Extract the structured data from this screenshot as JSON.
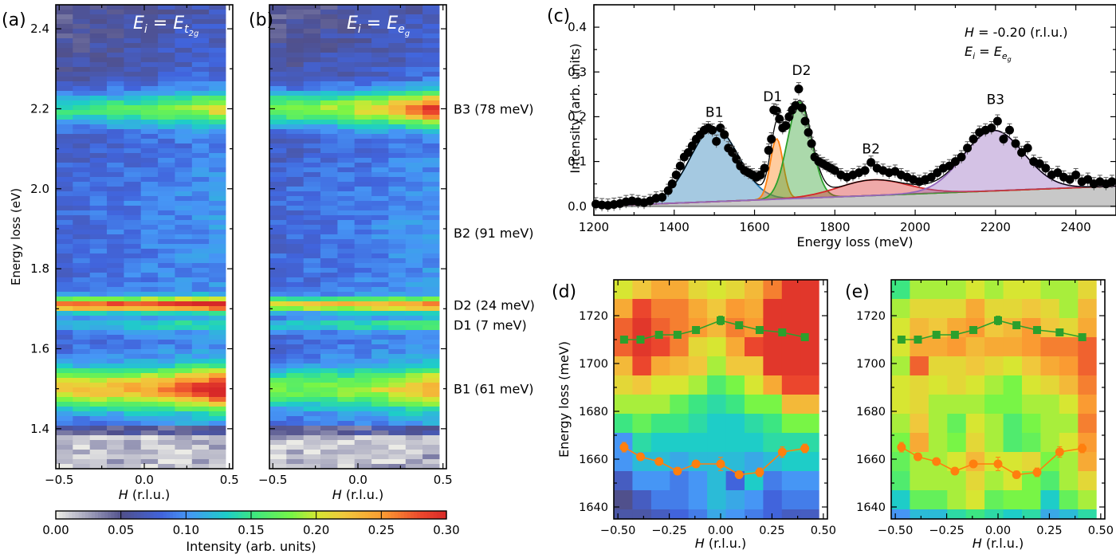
{
  "chart_data": [
    {
      "id": "a",
      "type": "heatmap",
      "panel_label": "(a)",
      "annotation": "E_i = E_t2g",
      "xlabel": "H (r.l.u.)",
      "ylabel": "Energy loss (eV)",
      "xlim": [
        -0.52,
        0.52
      ],
      "ylim": [
        1.3,
        2.46
      ],
      "xticks": [
        -0.5,
        0.0,
        0.5
      ],
      "xtick_labels": [
        "−0.5",
        "0.0",
        "0.5"
      ],
      "yticks": [
        1.4,
        1.6,
        1.8,
        2.0,
        2.2,
        2.4
      ],
      "ytick_labels": [
        "1.4",
        "1.6",
        "1.8",
        "2.0",
        "2.2",
        "2.4"
      ],
      "H_columns": [
        -0.47,
        -0.37,
        -0.27,
        -0.17,
        -0.07,
        0.03,
        0.13,
        0.23,
        0.33,
        0.43
      ],
      "features": [
        {
          "name": "B1",
          "energy_eV": 1.5,
          "peak_intensity": 0.22,
          "right_edge_intensity": 0.29
        },
        {
          "name": "D1",
          "energy_eV": 1.66,
          "peak_intensity": 0.12,
          "right_edge_intensity": 0.13
        },
        {
          "name": "D2",
          "energy_eV": 1.71,
          "peak_intensity": 0.27,
          "right_edge_intensity": 0.3
        },
        {
          "name": "B3",
          "energy_eV": 2.2,
          "peak_intensity": 0.16,
          "right_edge_intensity": 0.2
        }
      ],
      "background_intensity": 0.08,
      "elastic_edge_eV": 1.38
    },
    {
      "id": "b",
      "type": "heatmap",
      "panel_label": "(b)",
      "annotation": "E_i = E_eg",
      "xlabel": "H (r.l.u.)",
      "xlim": [
        -0.52,
        0.52
      ],
      "ylim": [
        1.3,
        2.46
      ],
      "xticks": [
        -0.5,
        0.0,
        0.5
      ],
      "xtick_labels": [
        "−0.5",
        "0.0",
        "0.5"
      ],
      "H_columns": [
        -0.47,
        -0.37,
        -0.27,
        -0.17,
        -0.07,
        0.03,
        0.13,
        0.23,
        0.33,
        0.43
      ],
      "features": [
        {
          "name": "B1",
          "energy_eV": 1.5,
          "peak_intensity": 0.17,
          "right_edge_intensity": 0.22
        },
        {
          "name": "D1",
          "energy_eV": 1.66,
          "peak_intensity": 0.13,
          "right_edge_intensity": 0.14
        },
        {
          "name": "D2",
          "energy_eV": 1.71,
          "peak_intensity": 0.22,
          "right_edge_intensity": 0.24
        },
        {
          "name": "B3",
          "energy_eV": 2.2,
          "peak_intensity": 0.19,
          "right_edge_intensity": 0.28
        }
      ],
      "background_intensity": 0.08,
      "elastic_edge_eV": 1.38,
      "side_labels": [
        {
          "text": "B3 (78 meV)",
          "energy_eV": 2.2,
          "color": "#9467bd"
        },
        {
          "text": "B2 (91 meV)",
          "energy_eV": 1.89,
          "color": "#d62728"
        },
        {
          "text": "D2 (24 meV)",
          "energy_eV": 1.71,
          "color": "#2ca02c"
        },
        {
          "text": "D1 (7 meV)",
          "energy_eV": 1.66,
          "color": "#ff7f0e"
        },
        {
          "text": "B1 (61 meV)",
          "energy_eV": 1.5,
          "color": "#1f77b4"
        }
      ]
    },
    {
      "id": "colorbar",
      "type": "colorbar",
      "label": "Intensity (arb. units)",
      "range": [
        0.0,
        0.3
      ],
      "ticks": [
        0.0,
        0.05,
        0.1,
        0.15,
        0.2,
        0.25,
        0.3
      ],
      "tick_labels": [
        "0.00",
        "0.05",
        "0.10",
        "0.15",
        "0.20",
        "0.25",
        "0.30"
      ]
    },
    {
      "id": "c",
      "type": "line",
      "panel_label": "(c)",
      "annotation_lines": [
        "H = -0.20 (r.l.u.)",
        "E_i = E_eg"
      ],
      "xlabel": "Energy loss (meV)",
      "ylabel": "Intensity (arb. units)",
      "xlim": [
        1200,
        2500
      ],
      "ylim": [
        -0.02,
        0.45
      ],
      "xticks": [
        1200,
        1400,
        1600,
        1800,
        2000,
        2200,
        2400
      ],
      "xtick_labels": [
        "1200",
        "1400",
        "1600",
        "1800",
        "2000",
        "2200",
        "2400"
      ],
      "yticks": [
        0.0,
        0.1,
        0.2,
        0.3,
        0.4
      ],
      "ytick_labels": [
        "0.0",
        "0.1",
        "0.2",
        "0.3",
        "0.4"
      ],
      "background_line": {
        "x": [
          1200,
          2500
        ],
        "y": [
          0.0,
          0.045
        ]
      },
      "components": [
        {
          "name": "B1",
          "center": 1500,
          "height": 0.165,
          "sigma": 60,
          "color": "#1f77b4"
        },
        {
          "name": "D1",
          "center": 1655,
          "height": 0.135,
          "sigma": 16,
          "color": "#ff7f0e"
        },
        {
          "name": "D2",
          "center": 1712,
          "height": 0.215,
          "sigma": 30,
          "color": "#2ca02c"
        },
        {
          "name": "B2",
          "center": 1895,
          "height": 0.035,
          "sigma": 85,
          "color": "#d62728"
        },
        {
          "name": "B3",
          "center": 2195,
          "height": 0.135,
          "sigma": 75,
          "color": "#9467bd"
        }
      ],
      "data_points": {
        "x": [
          1205,
          1220,
          1235,
          1250,
          1265,
          1280,
          1295,
          1310,
          1325,
          1340,
          1355,
          1370,
          1385,
          1395,
          1405,
          1415,
          1425,
          1435,
          1445,
          1455,
          1465,
          1475,
          1485,
          1495,
          1505,
          1515,
          1525,
          1535,
          1545,
          1555,
          1565,
          1575,
          1585,
          1595,
          1605,
          1615,
          1625,
          1635,
          1642,
          1648,
          1655,
          1662,
          1670,
          1678,
          1686,
          1694,
          1702,
          1710,
          1718,
          1726,
          1734,
          1742,
          1750,
          1760,
          1770,
          1780,
          1790,
          1800,
          1815,
          1830,
          1845,
          1860,
          1875,
          1890,
          1905,
          1920,
          1935,
          1950,
          1965,
          1980,
          1995,
          2010,
          2025,
          2040,
          2055,
          2070,
          2085,
          2100,
          2115,
          2130,
          2145,
          2160,
          2175,
          2190,
          2205,
          2220,
          2235,
          2250,
          2265,
          2280,
          2295,
          2310,
          2325,
          2340,
          2355,
          2370,
          2385,
          2400,
          2415,
          2430,
          2445,
          2460,
          2475,
          2490
        ],
        "y": [
          0.005,
          0.003,
          0.002,
          0.004,
          0.006,
          0.01,
          0.012,
          0.01,
          0.008,
          0.012,
          0.018,
          0.02,
          0.035,
          0.05,
          0.07,
          0.09,
          0.11,
          0.12,
          0.135,
          0.15,
          0.16,
          0.17,
          0.175,
          0.17,
          0.145,
          0.175,
          0.16,
          0.13,
          0.12,
          0.105,
          0.09,
          0.08,
          0.075,
          0.07,
          0.065,
          0.07,
          0.085,
          0.125,
          0.15,
          0.215,
          0.213,
          0.195,
          0.175,
          0.18,
          0.2,
          0.215,
          0.225,
          0.262,
          0.22,
          0.19,
          0.165,
          0.14,
          0.11,
          0.1,
          0.095,
          0.09,
          0.085,
          0.08,
          0.07,
          0.065,
          0.07,
          0.075,
          0.08,
          0.098,
          0.085,
          0.08,
          0.075,
          0.078,
          0.07,
          0.065,
          0.06,
          0.055,
          0.06,
          0.065,
          0.075,
          0.085,
          0.09,
          0.1,
          0.11,
          0.13,
          0.15,
          0.165,
          0.17,
          0.175,
          0.19,
          0.15,
          0.17,
          0.14,
          0.12,
          0.13,
          0.1,
          0.095,
          0.085,
          0.07,
          0.075,
          0.065,
          0.06,
          0.07,
          0.055,
          0.06,
          0.05,
          0.055,
          0.05,
          0.055
        ]
      },
      "peak_labels": [
        {
          "text": "B1",
          "x": 1500,
          "y": 0.2,
          "color": "#1f77b4"
        },
        {
          "text": "D1",
          "x": 1645,
          "y": 0.235,
          "color": "#ff7f0e"
        },
        {
          "text": "D2",
          "x": 1717,
          "y": 0.293,
          "color": "#2ca02c"
        },
        {
          "text": "B2",
          "x": 1890,
          "y": 0.118,
          "color": "#d62728"
        },
        {
          "text": "B3",
          "x": 2200,
          "y": 0.228,
          "color": "#9467bd"
        }
      ]
    },
    {
      "id": "d",
      "type": "heatmap",
      "panel_label": "(d)",
      "xlabel": "H (r.l.u.)",
      "ylabel": "Energy loss (meV)",
      "xlim": [
        -0.52,
        0.52
      ],
      "ylim": [
        1635,
        1735
      ],
      "xticks": [
        -0.5,
        -0.25,
        0.0,
        0.25,
        0.5
      ],
      "xtick_labels": [
        "−0.50",
        "−0.25",
        "0.00",
        "0.25",
        "0.50"
      ],
      "yticks": [
        1640,
        1660,
        1680,
        1700,
        1720
      ],
      "ytick_labels": [
        "1640",
        "1660",
        "1680",
        "1700",
        "1720"
      ],
      "H_columns": [
        -0.47,
        -0.39,
        -0.3,
        -0.21,
        -0.12,
        -0.03,
        0.06,
        0.15,
        0.24,
        0.33,
        0.42
      ],
      "row_energies": [
        1731,
        1723,
        1715,
        1707,
        1699,
        1691,
        1683,
        1675,
        1667,
        1659,
        1651,
        1643,
        1637
      ],
      "grid_intensity": [
        [
          0.2,
          0.22,
          0.24,
          0.24,
          0.21,
          0.2,
          0.21,
          0.23,
          0.26,
          0.29,
          0.29
        ],
        [
          0.24,
          0.28,
          0.26,
          0.26,
          0.24,
          0.22,
          0.25,
          0.24,
          0.29,
          0.29,
          0.29
        ],
        [
          0.27,
          0.29,
          0.27,
          0.26,
          0.25,
          0.23,
          0.26,
          0.25,
          0.29,
          0.29,
          0.29
        ],
        [
          0.27,
          0.29,
          0.28,
          0.26,
          0.21,
          0.2,
          0.24,
          0.28,
          0.29,
          0.29,
          0.29
        ],
        [
          0.23,
          0.28,
          0.24,
          0.23,
          0.22,
          0.19,
          0.22,
          0.22,
          0.29,
          0.29,
          0.29
        ],
        [
          0.21,
          0.22,
          0.2,
          0.2,
          0.19,
          0.16,
          0.18,
          0.2,
          0.24,
          0.28,
          0.28
        ],
        [
          0.19,
          0.19,
          0.19,
          0.17,
          0.15,
          0.14,
          0.15,
          0.18,
          0.18,
          0.23,
          0.23
        ],
        [
          0.15,
          0.17,
          0.15,
          0.15,
          0.14,
          0.13,
          0.13,
          0.14,
          0.15,
          0.18,
          0.18
        ],
        [
          0.1,
          0.14,
          0.13,
          0.13,
          0.13,
          0.13,
          0.13,
          0.13,
          0.14,
          0.14,
          0.14
        ],
        [
          0.1,
          0.12,
          0.12,
          0.11,
          0.12,
          0.12,
          0.12,
          0.11,
          0.12,
          0.13,
          0.13
        ],
        [
          0.07,
          0.1,
          0.1,
          0.09,
          0.1,
          0.12,
          0.08,
          0.13,
          0.09,
          0.1,
          0.1
        ],
        [
          0.05,
          0.07,
          0.09,
          0.09,
          0.1,
          0.12,
          0.11,
          0.1,
          0.08,
          0.09,
          0.09
        ],
        [
          0.06,
          0.06,
          0.07,
          0.08,
          0.09,
          0.11,
          0.1,
          0.09,
          0.08,
          0.07,
          0.07
        ]
      ],
      "series": [
        {
          "name": "D2",
          "marker": "square",
          "color": "#2ca02c",
          "x": [
            -0.47,
            -0.39,
            -0.3,
            -0.21,
            -0.12,
            0.0,
            0.09,
            0.19,
            0.3,
            0.41
          ],
          "y": [
            1710,
            1710,
            1712,
            1712,
            1714,
            1718,
            1716,
            1714,
            1713,
            1711
          ],
          "err": [
            0.8,
            0.8,
            0.8,
            0.8,
            0.8,
            1.8,
            1.0,
            0.9,
            0.9,
            0.8
          ]
        },
        {
          "name": "D1",
          "marker": "circle",
          "color": "#ff7f0e",
          "x": [
            -0.47,
            -0.39,
            -0.3,
            -0.21,
            -0.12,
            0.0,
            0.09,
            0.19,
            0.3,
            0.41
          ],
          "y": [
            1665,
            1661,
            1659,
            1655,
            1658,
            1658,
            1653.5,
            1654.5,
            1663,
            1664.5
          ],
          "err": [
            2.0,
            1.5,
            1.0,
            1.5,
            1.2,
            2.8,
            1.5,
            1.8,
            2.2,
            1.8
          ]
        }
      ]
    },
    {
      "id": "e",
      "type": "heatmap",
      "panel_label": "(e)",
      "xlabel": "H (r.l.u.)",
      "xlim": [
        -0.52,
        0.52
      ],
      "ylim": [
        1635,
        1735
      ],
      "xticks": [
        -0.5,
        -0.25,
        0.0,
        0.25,
        0.5
      ],
      "xtick_labels": [
        "−0.50",
        "−0.25",
        "0.00",
        "0.25",
        "0.50"
      ],
      "yticks": [
        1640,
        1660,
        1680,
        1700,
        1720
      ],
      "ytick_labels": [
        "1640",
        "1660",
        "1680",
        "1700",
        "1720"
      ],
      "H_columns": [
        -0.47,
        -0.39,
        -0.3,
        -0.21,
        -0.12,
        -0.03,
        0.06,
        0.15,
        0.24,
        0.33,
        0.42
      ],
      "row_energies": [
        1731,
        1723,
        1715,
        1707,
        1699,
        1691,
        1683,
        1675,
        1667,
        1659,
        1651,
        1643,
        1637
      ],
      "grid_intensity": [
        [
          0.15,
          0.19,
          0.19,
          0.19,
          0.2,
          0.19,
          0.2,
          0.2,
          0.19,
          0.19,
          0.21
        ],
        [
          0.19,
          0.21,
          0.21,
          0.21,
          0.24,
          0.21,
          0.21,
          0.22,
          0.21,
          0.19,
          0.23
        ],
        [
          0.2,
          0.23,
          0.22,
          0.24,
          0.25,
          0.22,
          0.23,
          0.25,
          0.22,
          0.21,
          0.24
        ],
        [
          0.2,
          0.24,
          0.24,
          0.25,
          0.23,
          0.24,
          0.24,
          0.25,
          0.26,
          0.26,
          0.27
        ],
        [
          0.19,
          0.27,
          0.21,
          0.21,
          0.22,
          0.21,
          0.2,
          0.22,
          0.24,
          0.25,
          0.27
        ],
        [
          0.2,
          0.21,
          0.2,
          0.21,
          0.2,
          0.19,
          0.18,
          0.2,
          0.21,
          0.23,
          0.26
        ],
        [
          0.2,
          0.21,
          0.19,
          0.19,
          0.19,
          0.18,
          0.18,
          0.19,
          0.19,
          0.2,
          0.25
        ],
        [
          0.19,
          0.22,
          0.19,
          0.17,
          0.2,
          0.19,
          0.16,
          0.18,
          0.19,
          0.19,
          0.26
        ],
        [
          0.18,
          0.24,
          0.19,
          0.18,
          0.21,
          0.19,
          0.16,
          0.17,
          0.19,
          0.2,
          0.25
        ],
        [
          0.17,
          0.19,
          0.19,
          0.2,
          0.23,
          0.2,
          0.2,
          0.21,
          0.18,
          0.19,
          0.24
        ],
        [
          0.16,
          0.19,
          0.19,
          0.19,
          0.21,
          0.19,
          0.2,
          0.18,
          0.16,
          0.19,
          0.21
        ],
        [
          0.13,
          0.17,
          0.17,
          0.19,
          0.2,
          0.17,
          0.18,
          0.18,
          0.13,
          0.17,
          0.19
        ],
        [
          0.1,
          0.12,
          0.12,
          0.14,
          0.15,
          0.14,
          0.13,
          0.14,
          0.11,
          0.12,
          0.14
        ]
      ],
      "series": [
        {
          "name": "D2",
          "marker": "square",
          "color": "#2ca02c",
          "x": [
            -0.47,
            -0.39,
            -0.3,
            -0.21,
            -0.12,
            0.0,
            0.09,
            0.19,
            0.3,
            0.41
          ],
          "y": [
            1710,
            1710,
            1712,
            1712,
            1714,
            1718,
            1716,
            1714,
            1713,
            1711
          ],
          "err": [
            0.8,
            0.8,
            0.8,
            0.8,
            0.8,
            1.8,
            1.0,
            0.9,
            0.9,
            0.8
          ]
        },
        {
          "name": "D1",
          "marker": "circle",
          "color": "#ff7f0e",
          "x": [
            -0.47,
            -0.39,
            -0.3,
            -0.21,
            -0.12,
            0.0,
            0.09,
            0.19,
            0.3,
            0.41
          ],
          "y": [
            1665,
            1661,
            1659,
            1655,
            1658,
            1658,
            1653.5,
            1654.5,
            1663,
            1664.5
          ],
          "err": [
            2.0,
            1.5,
            1.0,
            1.5,
            1.2,
            2.8,
            1.5,
            1.8,
            2.2,
            1.8
          ]
        }
      ]
    }
  ]
}
